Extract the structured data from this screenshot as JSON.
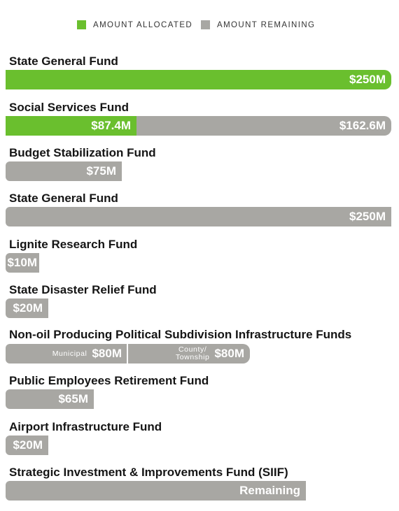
{
  "chart_data": {
    "type": "bar",
    "unit": "$M",
    "legend": [
      {
        "label": "AMOUNT ALLOCATED",
        "color": "#6abf2e"
      },
      {
        "label": "AMOUNT REMAINING",
        "color": "#a8a7a3"
      }
    ],
    "colors": {
      "allocated": "#6abf2e",
      "remaining": "#a8a7a3"
    },
    "funds": [
      {
        "name": "State General Fund",
        "segments": [
          {
            "series": "allocated",
            "value": 250,
            "label": "$250M"
          }
        ]
      },
      {
        "name": "Social Services Fund",
        "segments": [
          {
            "series": "allocated",
            "value": 87.4,
            "label": "$87.4M"
          },
          {
            "series": "remaining",
            "value": 162.6,
            "label": "$162.6M"
          }
        ]
      },
      {
        "name": "Budget Stabilization Fund",
        "segments": [
          {
            "series": "remaining",
            "value": 75,
            "label": "$75M"
          }
        ]
      },
      {
        "name": "State General Fund",
        "segments": [
          {
            "series": "remaining",
            "value": 250,
            "label": "$250M"
          }
        ]
      },
      {
        "name": "Lignite Research Fund",
        "segments": [
          {
            "series": "remaining",
            "value": 10,
            "label": "$10M"
          }
        ]
      },
      {
        "name": "State Disaster Relief Fund",
        "segments": [
          {
            "series": "remaining",
            "value": 20,
            "label": "$20M"
          }
        ]
      },
      {
        "name": "Non-oil Producing Political Subdivision Infrastructure Funds",
        "segments": [
          {
            "series": "remaining",
            "value": 80,
            "label": "$80M",
            "sublabel": "Municipal"
          },
          {
            "series": "remaining",
            "value": 80,
            "label": "$80M",
            "sublabel_lines": [
              "County/",
              "Township"
            ]
          }
        ]
      },
      {
        "name": "Public Employees Retirement Fund",
        "segments": [
          {
            "series": "remaining",
            "value": 65,
            "label": "$65M"
          }
        ]
      },
      {
        "name": "Airport Infrastructure Fund",
        "segments": [
          {
            "series": "remaining",
            "value": 20,
            "label": "$20M"
          }
        ]
      },
      {
        "name": "Strategic Investment & Improvements Fund (SIIF)",
        "segments": [
          {
            "series": "remaining",
            "value": null,
            "label": "Remaining"
          }
        ]
      }
    ]
  }
}
